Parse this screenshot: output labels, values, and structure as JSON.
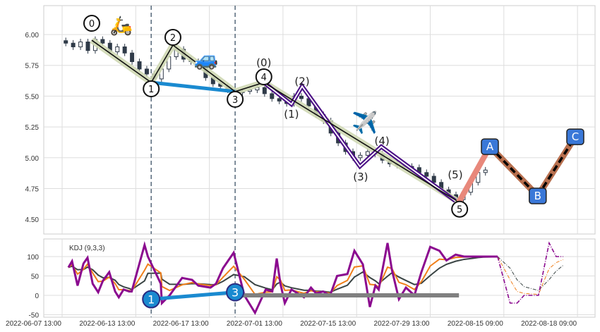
{
  "chart_data": {
    "type": "line",
    "title": "",
    "x_unit": "bar index",
    "x_tick_labels": [
      "2022-06-07 13:00",
      "2022-06-13 13:00",
      "2022-06-17 13:00",
      "2022-07-01 13:00",
      "2022-07-15 13:00",
      "2022-07-29 13:00",
      "2022-08-15 09:00",
      "2022-08-18 09:00"
    ],
    "x_ticks": [
      0,
      20,
      40,
      60,
      80,
      100,
      120,
      140
    ],
    "price_panel": {
      "ylim": [
        4.37,
        6.23
      ],
      "y_ticks": [
        "6.00",
        "5.75",
        "5.50",
        "5.25",
        "5.00",
        "4.75",
        "4.50"
      ],
      "y_tick_values": [
        6.0,
        5.75,
        5.5,
        5.25,
        5.0,
        4.75,
        4.5
      ],
      "candle_closes": {
        "x": [
          1,
          3,
          5,
          7,
          9,
          11,
          13,
          15,
          17,
          19,
          21,
          23,
          25,
          27,
          29,
          31,
          33,
          35,
          37,
          39,
          41,
          43,
          45,
          47,
          49,
          51,
          53,
          55,
          57,
          59,
          61,
          63,
          65,
          67,
          69,
          71,
          73,
          75,
          77,
          79,
          81,
          83,
          85,
          87,
          89,
          91,
          93,
          95,
          97,
          99,
          101,
          103,
          105,
          107,
          109,
          111,
          113,
          115
        ],
        "close": [
          5.93,
          5.9,
          5.94,
          5.87,
          5.96,
          5.93,
          5.86,
          5.9,
          5.85,
          5.78,
          5.72,
          5.68,
          5.64,
          5.72,
          5.82,
          5.88,
          5.8,
          5.78,
          5.76,
          5.65,
          5.6,
          5.58,
          5.55,
          5.53,
          5.54,
          5.55,
          5.57,
          5.52,
          5.48,
          5.46,
          5.44,
          5.5,
          5.48,
          5.42,
          5.35,
          5.3,
          5.2,
          5.12,
          5.05,
          5.0,
          5.02,
          5.05,
          5.03,
          4.98,
          4.95,
          4.94,
          4.93,
          4.92,
          4.88,
          4.85,
          4.8,
          4.74,
          4.7,
          4.66,
          4.72,
          4.8,
          4.88,
          4.9
        ]
      },
      "main_wave": [
        {
          "label": "0",
          "x": 8.05,
          "y": 5.954
        },
        {
          "label": "1",
          "x": 24.2,
          "y": 5.611
        },
        {
          "label": "2",
          "x": 30.1,
          "y": 5.914
        },
        {
          "label": "3",
          "x": 47.0,
          "y": 5.537
        },
        {
          "label": "4",
          "x": 54.8,
          "y": 5.611
        },
        {
          "label": "5",
          "x": 107.8,
          "y": 4.64
        }
      ],
      "line_1_3": [
        {
          "x": 24.2,
          "y": 5.611
        },
        {
          "x": 47.0,
          "y": 5.537
        }
      ],
      "sub_wave": [
        {
          "label": "(0)",
          "x": 54.8,
          "y": 5.611
        },
        {
          "label": "(1)",
          "x": 62.3,
          "y": 5.434
        },
        {
          "label": "(2)",
          "x": 65.2,
          "y": 5.58
        },
        {
          "label": "(3)",
          "x": 80.9,
          "y": 4.93
        },
        {
          "label": "(4)",
          "x": 86.7,
          "y": 5.09
        },
        {
          "label": "(5)",
          "x": 106.8,
          "y": 4.65
        }
      ],
      "projection": [
        {
          "label": "5",
          "x": 107.8,
          "y": 4.64
        },
        {
          "label": "A",
          "x": 116.2,
          "y": 5.09
        },
        {
          "label": "B",
          "x": 129.2,
          "y": 4.69
        },
        {
          "label": "C",
          "x": 139.4,
          "y": 5.17
        }
      ],
      "vlines_x": [
        24.2,
        47.0
      ],
      "icons": [
        "scooter-emoji",
        "car-emoji",
        "airplane-emoji"
      ]
    },
    "kdj_panel": {
      "label": "KDJ (9,3,3)",
      "ylim": [
        -52,
        142
      ],
      "y_ticks": [
        "100",
        "50",
        "0",
        "-50"
      ],
      "y_tick_values": [
        100,
        50,
        0,
        -50
      ],
      "J": {
        "x": [
          1.7,
          2.7,
          4.2,
          5.8,
          6.9,
          8.3,
          9.8,
          11.1,
          12.8,
          14.4,
          15.4,
          16.7,
          18.2,
          18.9,
          22.4,
          23.3,
          26.8,
          27.1,
          29.2,
          32.6,
          35.3,
          37.0,
          40.3,
          41.8,
          43.7,
          46.6,
          49.5,
          52.4,
          55.3,
          57.1,
          58.3,
          59.3,
          60.5,
          62.3,
          65.7,
          67.6,
          69.0,
          70.9,
          72.8,
          74.7,
          77.5,
          79.4,
          81.7,
          83.6,
          85.1,
          86.0,
          88.4,
          89.6,
          91.5,
          93.4,
          95.7,
          97.6,
          100.0,
          102.5,
          104.4,
          106.9,
          109.2,
          111.7,
          113.0,
          114.4,
          116.9,
          118.3
        ],
        "J": [
          72,
          88,
          25,
          82,
          97,
          30,
          8,
          38,
          60,
          10,
          -5,
          15,
          10,
          10,
          130,
          100,
          30,
          -20,
          0,
          45,
          40,
          25,
          20,
          30,
          70,
          110,
          0,
          -45,
          15,
          10,
          95,
          30,
          -20,
          15,
          -5,
          20,
          5,
          10,
          0,
          50,
          55,
          115,
          80,
          -30,
          25,
          15,
          135,
          65,
          -10,
          20,
          0,
          60,
          125,
          115,
          90,
          105,
          100,
          100,
          100,
          100,
          100,
          100
        ]
      },
      "J_projection": {
        "x": [
          118.3,
          121.7,
          123.6,
          125.5,
          129.4,
          132.3,
          134.2,
          136.1
        ],
        "J": [
          100,
          -20,
          -20,
          0,
          0,
          135,
          100,
          100
        ]
      },
      "markers": [
        {
          "label": "1",
          "x": 24.2,
          "y": -10
        },
        {
          "label": "3",
          "x": 47.0,
          "y": 8
        }
      ],
      "gray_line": {
        "x": [
          47.0,
          107.8
        ],
        "y": [
          0,
          0
        ]
      }
    },
    "colors": {
      "J": "#8b0a8f",
      "K": "#f07f1a",
      "D": "#3a4444",
      "wave_band": "#cfd8b4",
      "sub_wave": "#4b0f85",
      "blue": "#1a8ad0",
      "proj1": "#e8887b",
      "proj2": "#b8704f",
      "label_box": "#3a78d8"
    }
  }
}
